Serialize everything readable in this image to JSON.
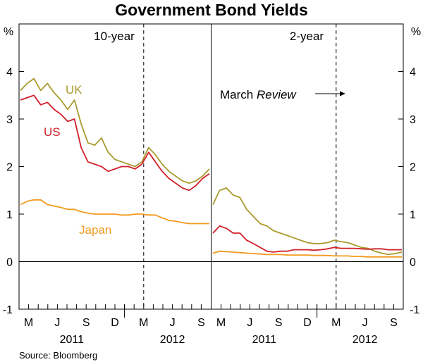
{
  "chart_data": {
    "type": "line",
    "title": "Government Bond Yields",
    "ylabel_left": "%",
    "ylabel_right": "%",
    "ylim": [
      -1,
      5
    ],
    "yticks": [
      "-1",
      "0",
      "1",
      "2",
      "3",
      "4"
    ],
    "source": "Source: Bloomberg",
    "annotation": {
      "prefix": "March ",
      "italic": "Review"
    },
    "colors": {
      "UK": "#a99a2e",
      "US": "#d2202a",
      "Japan": "#f39a1e"
    },
    "panels": [
      {
        "name": "10-year",
        "month_labels": [
          "M",
          "J",
          "S",
          "D",
          "M",
          "J",
          "S"
        ],
        "year_labels": [
          "2011",
          "2012"
        ],
        "series": [
          {
            "name": "UK",
            "label": "UK",
            "values": [
              3.6,
              3.75,
              3.85,
              3.6,
              3.75,
              3.55,
              3.4,
              3.2,
              3.4,
              2.9,
              2.5,
              2.45,
              2.6,
              2.3,
              2.15,
              2.1,
              2.05,
              2.0,
              2.1,
              2.4,
              2.25,
              2.05,
              1.9,
              1.8,
              1.7,
              1.65,
              1.7,
              1.8,
              1.95
            ]
          },
          {
            "name": "US",
            "label": "US",
            "values": [
              3.4,
              3.45,
              3.5,
              3.3,
              3.35,
              3.2,
              3.1,
              2.95,
              3.0,
              2.4,
              2.1,
              2.05,
              2.0,
              1.9,
              1.95,
              2.0,
              2.0,
              1.95,
              2.05,
              2.3,
              2.1,
              1.9,
              1.75,
              1.65,
              1.55,
              1.5,
              1.6,
              1.75,
              1.85
            ]
          },
          {
            "name": "Japan",
            "label": "Japan",
            "values": [
              1.2,
              1.27,
              1.3,
              1.3,
              1.2,
              1.17,
              1.14,
              1.1,
              1.1,
              1.05,
              1.02,
              1.0,
              1.0,
              1.0,
              1.0,
              0.98,
              0.98,
              1.0,
              1.0,
              0.98,
              0.98,
              0.92,
              0.87,
              0.85,
              0.82,
              0.8,
              0.8,
              0.8,
              0.8
            ]
          }
        ]
      },
      {
        "name": "2-year",
        "month_labels": [
          "M",
          "J",
          "S",
          "D",
          "M",
          "J",
          "S"
        ],
        "year_labels": [
          "2011",
          "2012"
        ],
        "series": [
          {
            "name": "UK",
            "values": [
              1.2,
              1.5,
              1.55,
              1.4,
              1.35,
              1.1,
              0.95,
              0.8,
              0.75,
              0.65,
              0.6,
              0.55,
              0.5,
              0.45,
              0.4,
              0.38,
              0.38,
              0.4,
              0.45,
              0.42,
              0.4,
              0.35,
              0.3,
              0.28,
              0.22,
              0.18,
              0.15,
              0.17,
              0.2
            ]
          },
          {
            "name": "US",
            "values": [
              0.6,
              0.75,
              0.7,
              0.6,
              0.6,
              0.45,
              0.38,
              0.3,
              0.22,
              0.2,
              0.22,
              0.22,
              0.25,
              0.25,
              0.25,
              0.24,
              0.25,
              0.27,
              0.3,
              0.28,
              0.28,
              0.28,
              0.27,
              0.26,
              0.27,
              0.27,
              0.25,
              0.25,
              0.25
            ]
          },
          {
            "name": "Japan",
            "values": [
              0.18,
              0.22,
              0.21,
              0.2,
              0.19,
              0.18,
              0.17,
              0.16,
              0.15,
              0.15,
              0.15,
              0.14,
              0.14,
              0.14,
              0.14,
              0.13,
              0.13,
              0.13,
              0.12,
              0.12,
              0.12,
              0.11,
              0.11,
              0.1,
              0.1,
              0.1,
              0.1,
              0.1,
              0.1
            ]
          }
        ]
      }
    ]
  }
}
